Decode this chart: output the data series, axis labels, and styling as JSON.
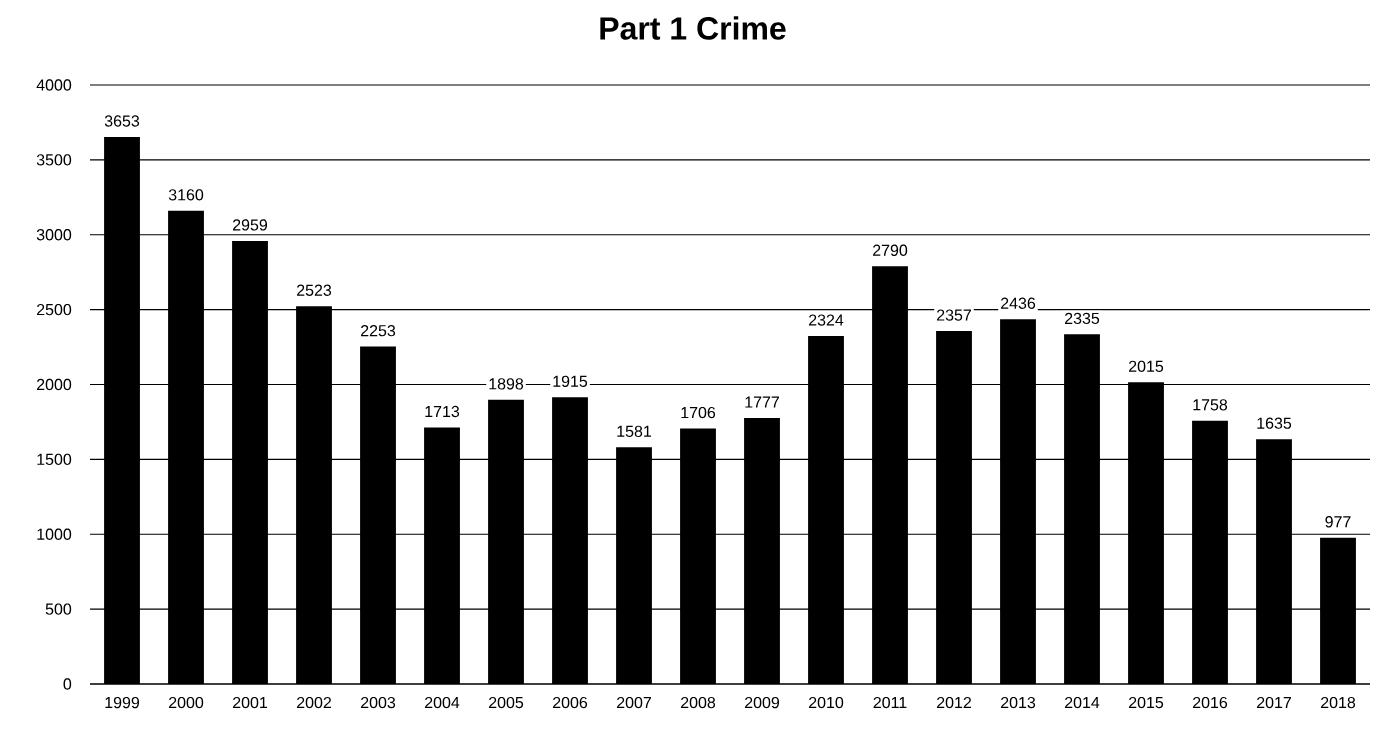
{
  "chart_data": {
    "type": "bar",
    "title": "Part 1 Crime",
    "categories": [
      "1999",
      "2000",
      "2001",
      "2002",
      "2003",
      "2004",
      "2005",
      "2006",
      "2007",
      "2008",
      "2009",
      "2010",
      "2011",
      "2012",
      "2013",
      "2014",
      "2015",
      "2016",
      "2017",
      "2018"
    ],
    "values": [
      3653,
      3160,
      2959,
      2523,
      2253,
      1713,
      1898,
      1915,
      1581,
      1706,
      1777,
      2324,
      2790,
      2357,
      2436,
      2335,
      2015,
      1758,
      1635,
      977
    ],
    "color": "#000000",
    "ylim": [
      0,
      4000
    ],
    "yticks": [
      0,
      500,
      1000,
      1500,
      2000,
      2500,
      3000,
      3500,
      4000
    ],
    "grid": "y",
    "data_labels": true
  }
}
